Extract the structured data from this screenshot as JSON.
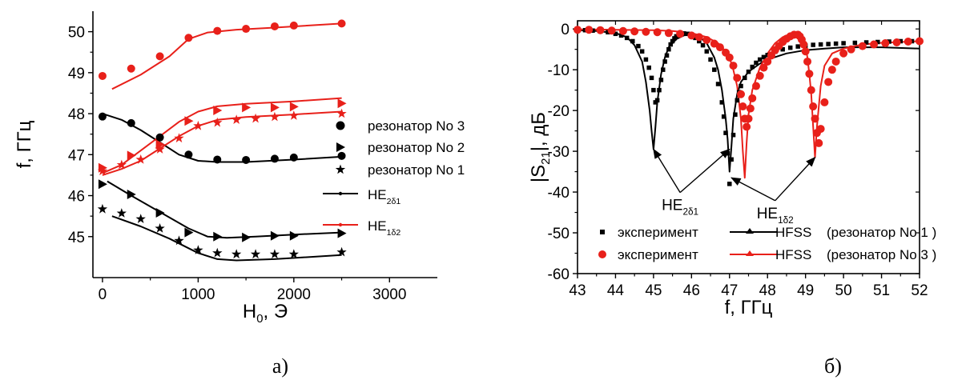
{
  "colors": {
    "black": "#000000",
    "red": "#e8201a"
  },
  "panels": [
    {
      "caption": "а)",
      "chart_data": {
        "type": "scatter",
        "xlabel": {
          "base": "H",
          "sub": "0",
          "rest": ", Э"
        },
        "ylabel": "f, ГГц",
        "xlim": [
          -100,
          3500
        ],
        "ylim": [
          44,
          50.5
        ],
        "xticks": [
          0,
          1000,
          2000,
          3000
        ],
        "yticks": [
          45,
          46,
          47,
          48,
          49,
          50
        ],
        "legend_position": "right",
        "legend": [
          {
            "label": "резонатор No 3",
            "marker": "circle",
            "color": "#000000"
          },
          {
            "label": "резонатор No 2",
            "marker": "triangle-right",
            "color": "#000000"
          },
          {
            "label": "резонатор No 1",
            "marker": "star",
            "color": "#000000"
          },
          {
            "label": {
              "base": "HE",
              "sub": "2δ1"
            },
            "marker": "line",
            "color": "#000000"
          },
          {
            "label": {
              "base": "HE",
              "sub": "1δ2"
            },
            "marker": "line",
            "color": "#e8201a"
          }
        ],
        "series": [
          {
            "marker": "circle",
            "color": "#e8201a",
            "x": [
              0,
              300,
              600,
              900,
              1200,
              1500,
              1800,
              2000,
              2500
            ],
            "y": [
              48.92,
              49.1,
              49.4,
              49.85,
              50.02,
              50.07,
              50.13,
              50.15,
              50.2
            ]
          },
          {
            "marker": "circle",
            "color": "#000000",
            "x": [
              0,
              300,
              600,
              900,
              1200,
              1500,
              1800,
              2000,
              2500
            ],
            "y": [
              47.93,
              47.77,
              47.42,
              47.0,
              46.88,
              46.87,
              46.9,
              46.93,
              46.97
            ]
          },
          {
            "marker": "triangle-right",
            "color": "#e8201a",
            "x": [
              0,
              300,
              600,
              900,
              1200,
              1500,
              1800,
              2000,
              2500
            ],
            "y": [
              46.68,
              46.98,
              47.25,
              47.82,
              48.08,
              48.15,
              48.15,
              48.17,
              48.25
            ]
          },
          {
            "marker": "star",
            "color": "#e8201a",
            "x": [
              0,
              200,
              400,
              600,
              800,
              1000,
              1200,
              1400,
              1600,
              1800,
              2000,
              2500
            ],
            "y": [
              46.6,
              46.75,
              46.88,
              47.13,
              47.4,
              47.7,
              47.78,
              47.85,
              47.88,
              47.92,
              47.95,
              48.0
            ]
          },
          {
            "marker": "triangle-right",
            "color": "#000000",
            "x": [
              0,
              300,
              600,
              900,
              1200,
              1500,
              1800,
              2000,
              2500
            ],
            "y": [
              46.28,
              46.03,
              45.58,
              45.1,
              45.0,
              44.98,
              45.02,
              45.02,
              45.08
            ]
          },
          {
            "marker": "star",
            "color": "#000000",
            "x": [
              0,
              200,
              400,
              600,
              800,
              1000,
              1200,
              1400,
              1600,
              1800,
              2000,
              2500
            ],
            "y": [
              45.67,
              45.57,
              45.43,
              45.2,
              44.9,
              44.67,
              44.6,
              44.57,
              44.57,
              44.57,
              44.57,
              44.62
            ]
          },
          {
            "marker": "line",
            "color": "#e8201a",
            "x": [
              100,
              400,
              700,
              900,
              1100,
              1400,
              1800,
              2500
            ],
            "y": [
              48.6,
              48.95,
              49.4,
              49.82,
              49.98,
              50.05,
              50.1,
              50.2
            ]
          },
          {
            "marker": "line",
            "color": "#000000",
            "x": [
              0,
              200,
              400,
              600,
              800,
              1000,
              1200,
              1500,
              2000,
              2500
            ],
            "y": [
              48.0,
              47.85,
              47.6,
              47.3,
              47.0,
              46.85,
              46.82,
              46.82,
              46.88,
              46.95
            ]
          },
          {
            "marker": "line",
            "color": "#e8201a",
            "x": [
              0,
              200,
              400,
              600,
              800,
              1000,
              1200,
              1500,
              2000,
              2500
            ],
            "y": [
              46.55,
              46.75,
              47.1,
              47.45,
              47.8,
              48.05,
              48.18,
              48.24,
              48.3,
              48.38
            ]
          },
          {
            "marker": "line",
            "color": "#e8201a",
            "x": [
              0,
              200,
              400,
              600,
              800,
              1000,
              1200,
              1500,
              2000,
              2500
            ],
            "y": [
              46.5,
              46.65,
              46.85,
              47.15,
              47.45,
              47.7,
              47.85,
              47.92,
              47.98,
              48.05
            ]
          },
          {
            "marker": "line",
            "color": "#000000",
            "x": [
              50,
              300,
              600,
              900,
              1100,
              1300,
              1600,
              2000,
              2500
            ],
            "y": [
              46.35,
              46.0,
              45.6,
              45.2,
              45.0,
              44.97,
              45.0,
              45.05,
              45.1
            ]
          },
          {
            "marker": "line",
            "color": "#000000",
            "x": [
              100,
              400,
              700,
              1000,
              1200,
              1400,
              1800,
              2500
            ],
            "y": [
              45.5,
              45.25,
              44.95,
              44.6,
              44.45,
              44.42,
              44.45,
              44.55
            ]
          }
        ]
      }
    },
    {
      "caption": "б)",
      "chart_data": {
        "type": "scatter",
        "xlabel": "f, ГГц",
        "ylabel": {
          "base": "|S",
          "sub": "21",
          "rest": "|, дБ"
        },
        "xlim": [
          43,
          52
        ],
        "ylim": [
          -60,
          2
        ],
        "xticks": [
          43,
          44,
          45,
          46,
          47,
          48,
          49,
          50,
          51,
          52
        ],
        "yticks": [
          0,
          -10,
          -20,
          -30,
          -40,
          -50,
          -60
        ],
        "legend_position": "bottom-right",
        "legend": [
          {
            "marker": "square",
            "color": "#000000",
            "label": "эксперимент",
            "line_color": "#000000",
            "line_label": "HFSS",
            "note": "(резонатор No 1 )"
          },
          {
            "marker": "circle",
            "color": "#e8201a",
            "label": "эксперимент",
            "line_color": "#e8201a",
            "line_label": "HFSS",
            "note": "(резонатор No 3 )"
          }
        ],
        "annotations": [
          {
            "label": {
              "base": "HE",
              "sub": "2δ1"
            },
            "at": [
              45.7,
              -40.5
            ],
            "arrows_to": [
              [
                45.0,
                -29.5
              ],
              [
                47.0,
                -29.5
              ]
            ]
          },
          {
            "label": {
              "base": "HE",
              "sub": "1δ2"
            },
            "at": [
              48.2,
              -42.5
            ],
            "arrows_to": [
              [
                47.05,
                -36.5
              ],
              [
                49.25,
                -31.5
              ]
            ]
          }
        ],
        "series": [
          {
            "marker": "square",
            "color": "#000000",
            "marker_size": 4.5,
            "x": [
              43.0,
              43.2,
              43.4,
              43.6,
              43.8,
              44.0,
              44.15,
              44.3,
              44.45,
              44.6,
              44.7,
              44.8,
              44.88,
              44.95,
              45.0,
              45.05,
              45.1,
              45.15,
              45.2,
              45.25,
              45.3,
              45.35,
              45.4,
              45.45,
              45.5,
              45.55,
              45.6,
              45.7,
              45.8,
              45.9,
              46.0,
              46.1,
              46.2,
              46.3,
              46.4,
              46.5,
              46.6,
              46.7,
              46.8,
              46.85,
              46.9,
              46.95,
              47.0,
              47.05,
              47.1,
              47.15,
              47.2,
              47.25,
              47.3,
              47.4,
              47.5,
              47.6,
              47.7,
              47.8,
              47.9,
              48.0,
              48.2,
              48.4,
              48.6,
              48.8,
              49.0,
              49.2,
              49.4,
              49.6,
              49.8,
              50.0,
              50.3,
              50.6,
              50.9,
              51.2,
              51.5,
              51.8,
              52.0
            ],
            "y": [
              -0.2,
              -0.3,
              -0.4,
              -0.6,
              -0.8,
              -1.2,
              -1.6,
              -2.2,
              -3.0,
              -4.2,
              -5.5,
              -7.5,
              -9.5,
              -12.0,
              -15.0,
              -18.0,
              -17.5,
              -15.0,
              -12.5,
              -10.0,
              -8.0,
              -6.5,
              -5.0,
              -3.8,
              -3.0,
              -2.3,
              -1.8,
              -1.3,
              -1.1,
              -1.2,
              -1.6,
              -2.2,
              -3.0,
              -4.0,
              -5.5,
              -7.5,
              -10.0,
              -13.5,
              -18.0,
              -21.5,
              -25.5,
              -30.5,
              -38.0,
              -32.0,
              -26.0,
              -21.0,
              -17.5,
              -15.5,
              -14.0,
              -12.0,
              -10.5,
              -9.3,
              -8.3,
              -7.5,
              -6.9,
              -6.4,
              -5.6,
              -5.0,
              -4.6,
              -4.3,
              -4.1,
              -3.9,
              -3.8,
              -3.7,
              -3.6,
              -3.5,
              -3.4,
              -3.3,
              -3.2,
              -3.1,
              -3.0,
              -3.0,
              -3.0
            ]
          },
          {
            "marker": "circle",
            "color": "#e8201a",
            "marker_size": 5,
            "x": [
              43.0,
              43.3,
              43.6,
              43.9,
              44.2,
              44.5,
              44.8,
              45.1,
              45.4,
              45.7,
              46.0,
              46.2,
              46.4,
              46.6,
              46.75,
              46.9,
              47.0,
              47.1,
              47.2,
              47.3,
              47.35,
              47.4,
              47.45,
              47.5,
              47.55,
              47.6,
              47.7,
              47.8,
              47.9,
              48.0,
              48.1,
              48.2,
              48.3,
              48.4,
              48.5,
              48.6,
              48.7,
              48.8,
              48.85,
              48.9,
              48.95,
              49.0,
              49.05,
              49.1,
              49.15,
              49.2,
              49.25,
              49.3,
              49.35,
              49.4,
              49.5,
              49.6,
              49.7,
              49.8,
              50.0,
              50.2,
              50.5,
              50.8,
              51.1,
              51.4,
              51.7,
              52.0
            ],
            "y": [
              -0.2,
              -0.2,
              -0.3,
              -0.4,
              -0.5,
              -0.6,
              -0.7,
              -0.8,
              -1.0,
              -1.2,
              -1.6,
              -2.0,
              -2.7,
              -3.6,
              -4.5,
              -5.8,
              -7.0,
              -9.0,
              -12.0,
              -16.0,
              -19.0,
              -22.0,
              -24.0,
              -22.0,
              -19.5,
              -17.0,
              -14.0,
              -11.5,
              -9.5,
              -8.0,
              -6.5,
              -5.2,
              -4.2,
              -3.2,
              -2.4,
              -1.8,
              -1.4,
              -1.4,
              -1.8,
              -2.6,
              -3.8,
              -5.5,
              -8.0,
              -11.0,
              -15.0,
              -19.0,
              -22.0,
              -25.5,
              -28.0,
              -24.5,
              -18.0,
              -13.0,
              -10.0,
              -8.0,
              -6.0,
              -5.0,
              -4.2,
              -3.8,
              -3.5,
              -3.3,
              -3.1,
              -3.0
            ]
          },
          {
            "marker": "line",
            "color": "#000000",
            "x": [
              43.0,
              43.5,
              44.0,
              44.3,
              44.5,
              44.7,
              44.8,
              44.9,
              44.95,
              45.0,
              45.05,
              45.1,
              45.2,
              45.3,
              45.4,
              45.6,
              45.8,
              46.0,
              46.2,
              46.4,
              46.6,
              46.7,
              46.8,
              46.9,
              46.95,
              47.0,
              47.05,
              47.1,
              47.2,
              47.3,
              47.5,
              47.8,
              48.0,
              48.5,
              49.0,
              49.5,
              50.0,
              51.0,
              52.0
            ],
            "y": [
              -0.3,
              -0.5,
              -1.0,
              -2.0,
              -4.0,
              -8.0,
              -13.0,
              -20.0,
              -25.0,
              -29.5,
              -24.0,
              -18.0,
              -11.0,
              -7.0,
              -4.5,
              -2.5,
              -1.6,
              -1.4,
              -1.9,
              -3.5,
              -7.0,
              -10.0,
              -15.0,
              -22.0,
              -27.0,
              -35.0,
              -29.0,
              -22.0,
              -16.0,
              -13.0,
              -10.5,
              -8.5,
              -7.5,
              -6.0,
              -5.2,
              -4.8,
              -4.5,
              -4.5,
              -4.8
            ]
          },
          {
            "marker": "line",
            "color": "#e8201a",
            "x": [
              43.0,
              44.0,
              45.0,
              45.5,
              46.0,
              46.4,
              46.7,
              46.9,
              47.0,
              47.1,
              47.2,
              47.3,
              47.35,
              47.4,
              47.45,
              47.5,
              47.6,
              47.8,
              48.0,
              48.2,
              48.4,
              48.6,
              48.7,
              48.8,
              48.9,
              49.0,
              49.05,
              49.1,
              49.15,
              49.2,
              49.25,
              49.3,
              49.4,
              49.5,
              49.7,
              50.0,
              50.5,
              51.0,
              51.5,
              52.0
            ],
            "y": [
              -0.1,
              -0.2,
              -0.3,
              -0.5,
              -1.0,
              -2.0,
              -3.5,
              -5.5,
              -7.0,
              -10.0,
              -14.0,
              -22.0,
              -30.0,
              -36.5,
              -28.0,
              -21.0,
              -15.0,
              -9.5,
              -6.0,
              -3.5,
              -2.0,
              -1.2,
              -1.0,
              -1.2,
              -2.0,
              -4.0,
              -7.0,
              -11.0,
              -16.0,
              -24.0,
              -31.5,
              -24.0,
              -14.0,
              -9.0,
              -6.0,
              -4.8,
              -3.8,
              -3.4,
              -3.2,
              -3.0
            ]
          }
        ]
      }
    }
  ]
}
